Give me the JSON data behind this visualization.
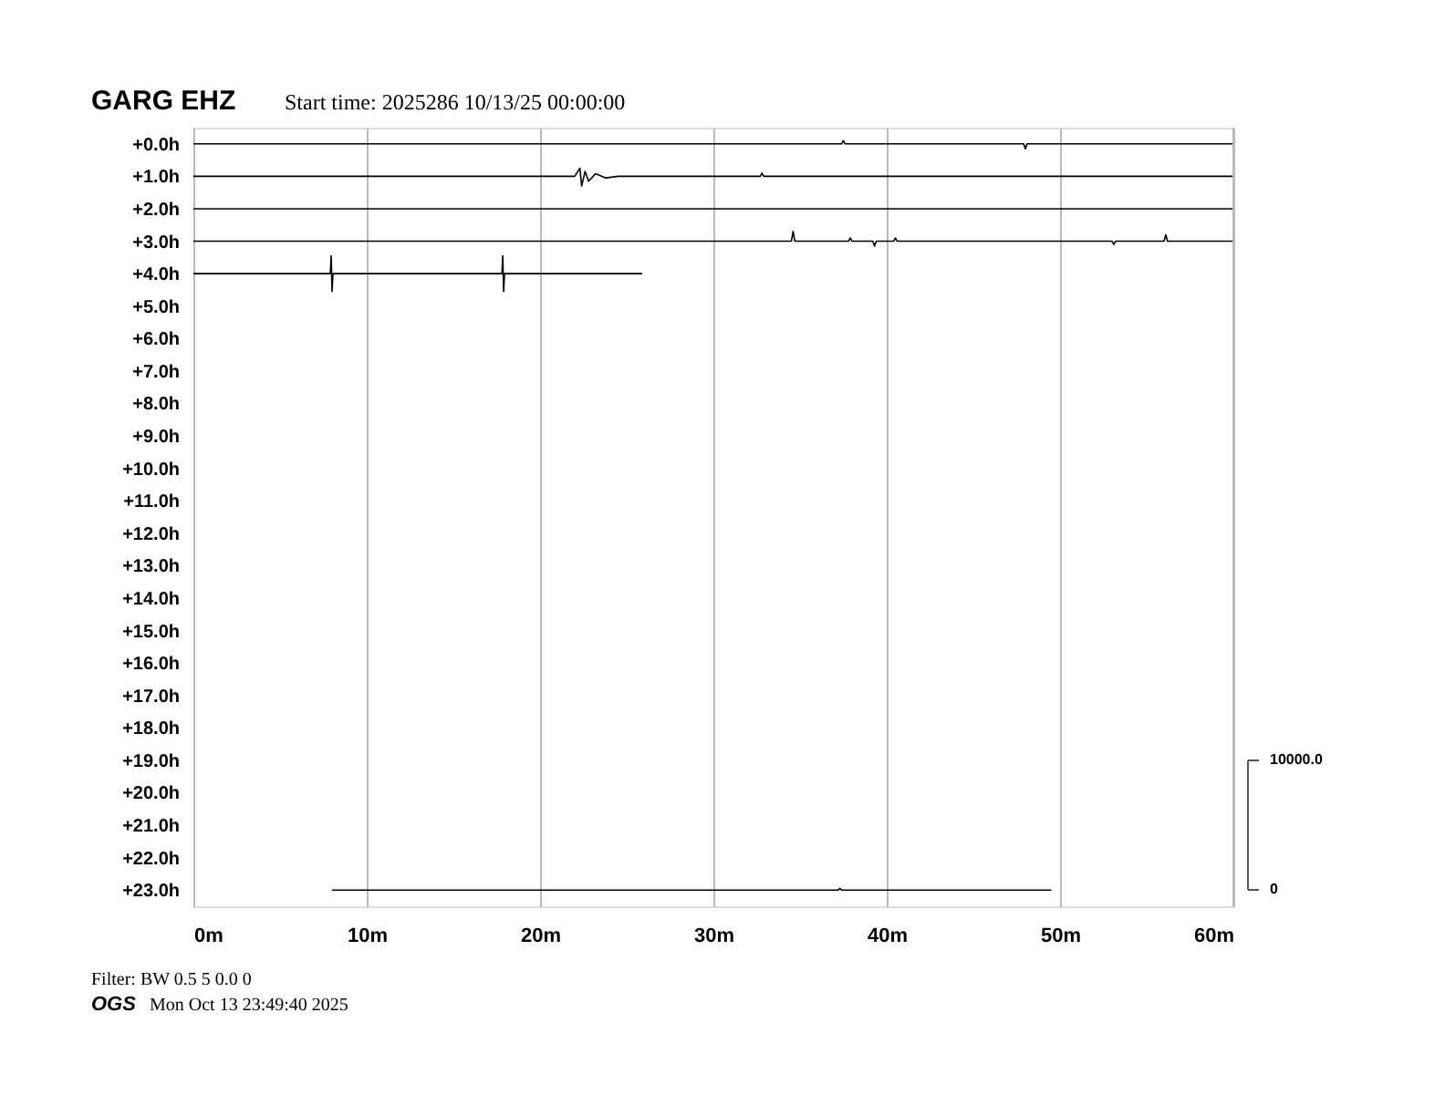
{
  "chart_data": {
    "type": "line",
    "title": "GARG EHZ",
    "subtitle": "Start time: 2025286 10/13/25 00:00:00",
    "xlim": [
      0,
      60
    ],
    "xticks": [
      {
        "value": 0,
        "label": "0m"
      },
      {
        "value": 10,
        "label": "10m"
      },
      {
        "value": 20,
        "label": "20m"
      },
      {
        "value": 30,
        "label": "30m"
      },
      {
        "value": 40,
        "label": "40m"
      },
      {
        "value": 50,
        "label": "50m"
      },
      {
        "value": 60,
        "label": "60m"
      }
    ],
    "ylim": [
      23.5,
      -0.5
    ],
    "yticks": [
      {
        "value": 0,
        "label": "+0.0h"
      },
      {
        "value": 1,
        "label": "+1.0h"
      },
      {
        "value": 2,
        "label": "+2.0h"
      },
      {
        "value": 3,
        "label": "+3.0h"
      },
      {
        "value": 4,
        "label": "+4.0h"
      },
      {
        "value": 5,
        "label": "+5.0h"
      },
      {
        "value": 6,
        "label": "+6.0h"
      },
      {
        "value": 7,
        "label": "+7.0h"
      },
      {
        "value": 8,
        "label": "+8.0h"
      },
      {
        "value": 9,
        "label": "+9.0h"
      },
      {
        "value": 10,
        "label": "+10.0h"
      },
      {
        "value": 11,
        "label": "+11.0h"
      },
      {
        "value": 12,
        "label": "+12.0h"
      },
      {
        "value": 13,
        "label": "+13.0h"
      },
      {
        "value": 14,
        "label": "+14.0h"
      },
      {
        "value": 15,
        "label": "+15.0h"
      },
      {
        "value": 16,
        "label": "+16.0h"
      },
      {
        "value": 17,
        "label": "+17.0h"
      },
      {
        "value": 18,
        "label": "+18.0h"
      },
      {
        "value": 19,
        "label": "+19.0h"
      },
      {
        "value": 20,
        "label": "+20.0h"
      },
      {
        "value": 21,
        "label": "+21.0h"
      },
      {
        "value": 22,
        "label": "+22.0h"
      },
      {
        "value": 23,
        "label": "+23.0h"
      }
    ],
    "grid": "x",
    "legend": false,
    "line_style": "solid",
    "marker": "none",
    "series": [
      {
        "color": "#000000",
        "x": [
          0,
          37.4,
          37.5,
          37.6,
          47.9,
          48.0,
          48.1,
          60
        ],
        "values": [
          0,
          0,
          -0.1,
          0,
          0,
          0.15,
          0,
          0
        ]
      },
      {
        "color": "#000000",
        "x": [
          0,
          22.0,
          22.3,
          22.4,
          22.6,
          22.8,
          23.2,
          23.8,
          24.5,
          32.7,
          32.8,
          32.9,
          60
        ],
        "values": [
          1,
          1,
          0.75,
          1.3,
          0.85,
          1.15,
          0.92,
          1.05,
          1,
          1,
          0.9,
          1,
          1
        ]
      },
      {
        "color": "#000000",
        "x": [
          0,
          60
        ],
        "values": [
          2,
          2
        ]
      },
      {
        "color": "#000000",
        "x": [
          0,
          34.5,
          34.6,
          34.7,
          37.8,
          37.9,
          38.0,
          39.2,
          39.3,
          39.4,
          40.4,
          40.5,
          40.6,
          53.0,
          53.1,
          53.2,
          56.0,
          56.1,
          56.2,
          60
        ],
        "values": [
          3,
          3,
          2.7,
          3,
          3,
          2.9,
          3,
          3,
          3.15,
          3,
          3,
          2.9,
          3,
          3,
          3.1,
          3,
          3,
          2.8,
          3,
          3
        ]
      },
      {
        "color": "#000000",
        "x": [
          0,
          7.9,
          7.95,
          8.0,
          8.05,
          17.8,
          17.85,
          17.9,
          17.95,
          25.9
        ],
        "values": [
          4,
          4,
          3.45,
          4.55,
          4,
          4,
          3.45,
          4.55,
          4,
          4
        ]
      },
      {
        "color": "#000000",
        "x": [
          8,
          37.2,
          37.3,
          37.4,
          49.5
        ],
        "values": [
          23,
          23,
          22.95,
          23,
          23
        ]
      }
    ],
    "annotations": [
      "10000.0",
      "0",
      "Filter: BW 0.5 5 0.0 0",
      "OGS",
      "Mon Oct 13 23:49:40 2025"
    ]
  }
}
